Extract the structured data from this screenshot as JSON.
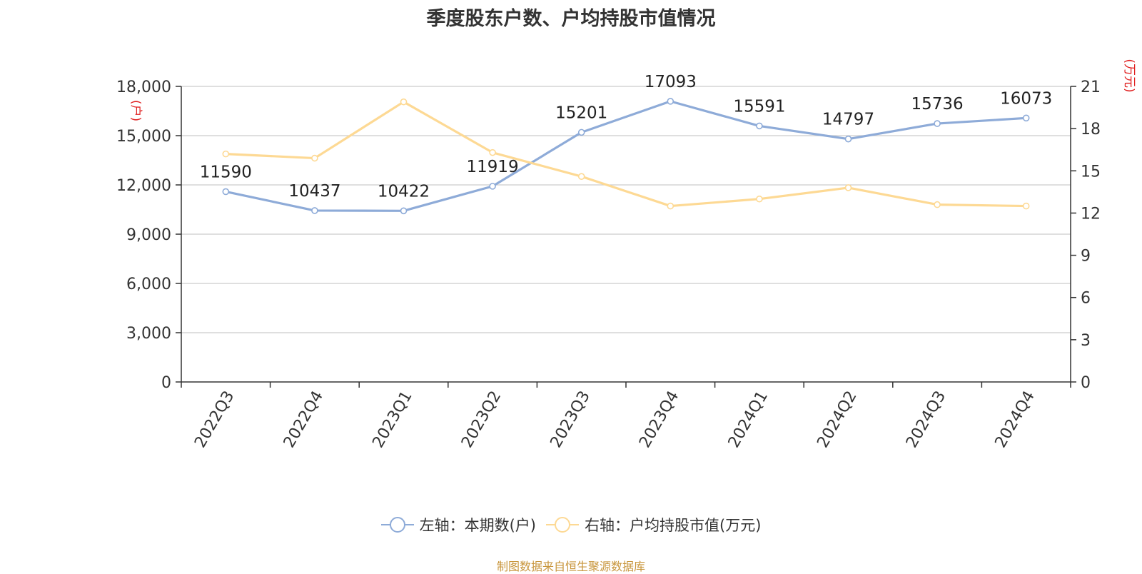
{
  "title": "季度股东户数、户均持股市值情况",
  "source": "制图数据来自恒生聚源数据库",
  "colors": {
    "left_series": "#8eabd8",
    "right_series": "#fdd994",
    "unit": "#e02020",
    "axis": "#333333",
    "grid": "#cccccc"
  },
  "chart_data": {
    "type": "line",
    "categories": [
      "2022Q3",
      "2022Q4",
      "2023Q1",
      "2023Q2",
      "2023Q3",
      "2023Q4",
      "2024Q1",
      "2024Q2",
      "2024Q3",
      "2024Q4"
    ],
    "left_axis": {
      "unit": "(户)",
      "min": 0,
      "max": 18000,
      "ticks": [
        0,
        3000,
        6000,
        9000,
        12000,
        15000,
        18000
      ],
      "tick_labels": [
        "0",
        "3,000",
        "6,000",
        "9,000",
        "12,000",
        "15,000",
        "18,000"
      ]
    },
    "right_axis": {
      "unit": "(万元)",
      "min": 0,
      "max": 21,
      "ticks": [
        0,
        3,
        6,
        9,
        12,
        15,
        18,
        21
      ],
      "tick_labels": [
        "0",
        "3",
        "6",
        "9",
        "12",
        "15",
        "18",
        "21"
      ]
    },
    "grid": true,
    "legend_position": "bottom",
    "series": [
      {
        "name": "左轴：本期数(户)",
        "axis": "left",
        "values": [
          11590,
          10437,
          10422,
          11919,
          15201,
          17093,
          15591,
          14797,
          15736,
          16073
        ],
        "data_labels": [
          "11590",
          "10437",
          "10422",
          "11919",
          "15201",
          "17093",
          "15591",
          "14797",
          "15736",
          "16073"
        ]
      },
      {
        "name": "右轴：户均持股市值(万元)",
        "axis": "right",
        "values": [
          16.2,
          15.9,
          19.9,
          16.3,
          14.6,
          12.5,
          13.0,
          13.8,
          12.6,
          12.5
        ]
      }
    ]
  }
}
